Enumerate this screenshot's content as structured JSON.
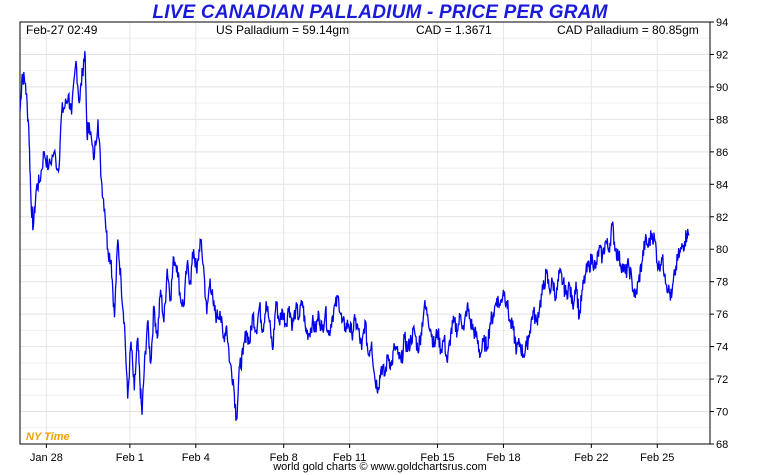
{
  "header": {
    "title": "LIVE CANADIAN PALLADIUM - PRICE PER GRAM",
    "timestamp": "Feb-27  02:49",
    "us_price": "US Palladium = 59.14gm",
    "cad_rate": "CAD = 1.3671",
    "cad_price": "CAD Palladium = 80.85gm"
  },
  "timezone_label": "NY Time",
  "footer": "world gold charts © www.goldchartsrus.com",
  "colors": {
    "title": "#1a1adb",
    "line": "#0000ee",
    "timezone": "#f0a000",
    "grid": "#e6e6e6"
  },
  "chart_data": {
    "type": "line",
    "title": "LIVE CANADIAN PALLADIUM - PRICE PER GRAM",
    "xlabel": "",
    "ylabel": "",
    "ylim": [
      68,
      94
    ],
    "y_ticks": [
      68,
      70,
      72,
      74,
      76,
      78,
      80,
      82,
      84,
      86,
      88,
      90,
      92,
      94
    ],
    "x_ticks": [
      {
        "label": "Jan 28",
        "x": 1.2
      },
      {
        "label": "Feb 1",
        "x": 5.0
      },
      {
        "label": "Feb 4",
        "x": 8.0
      },
      {
        "label": "Feb 8",
        "x": 12.0
      },
      {
        "label": "Feb 11",
        "x": 15.0
      },
      {
        "label": "Feb 15",
        "x": 19.0
      },
      {
        "label": "Feb 18",
        "x": 22.0
      },
      {
        "label": "Feb 22",
        "x": 26.0
      },
      {
        "label": "Feb 25",
        "x": 29.0
      }
    ],
    "xlim": [
      0,
      31.4
    ],
    "grid": true,
    "series": [
      {
        "name": "",
        "points": [
          [
            0.0,
            88.5
          ],
          [
            0.1,
            90.8
          ],
          [
            0.25,
            90.2
          ],
          [
            0.4,
            87.5
          ],
          [
            0.5,
            83.0
          ],
          [
            0.6,
            81.3
          ],
          [
            0.75,
            83.8
          ],
          [
            0.9,
            84.2
          ],
          [
            1.1,
            86.0
          ],
          [
            1.3,
            85.0
          ],
          [
            1.55,
            86.0
          ],
          [
            1.75,
            84.8
          ],
          [
            1.9,
            88.5
          ],
          [
            2.05,
            88.8
          ],
          [
            2.2,
            89.5
          ],
          [
            2.35,
            88.3
          ],
          [
            2.55,
            91.6
          ],
          [
            2.7,
            89.0
          ],
          [
            2.85,
            91.0
          ],
          [
            2.95,
            92.2
          ],
          [
            3.05,
            87.0
          ],
          [
            3.15,
            87.8
          ],
          [
            3.35,
            85.5
          ],
          [
            3.55,
            88.0
          ],
          [
            3.7,
            84.3
          ],
          [
            3.85,
            82.5
          ],
          [
            4.0,
            80.0
          ],
          [
            4.15,
            79.3
          ],
          [
            4.3,
            75.8
          ],
          [
            4.45,
            80.6
          ],
          [
            4.6,
            78.0
          ],
          [
            4.75,
            75.5
          ],
          [
            4.9,
            70.8
          ],
          [
            5.05,
            74.3
          ],
          [
            5.2,
            71.3
          ],
          [
            5.35,
            74.5
          ],
          [
            5.45,
            72.0
          ],
          [
            5.55,
            69.8
          ],
          [
            5.65,
            72.5
          ],
          [
            5.8,
            75.5
          ],
          [
            5.95,
            73.0
          ],
          [
            6.1,
            76.5
          ],
          [
            6.25,
            74.5
          ],
          [
            6.4,
            77.5
          ],
          [
            6.55,
            75.5
          ],
          [
            6.7,
            78.8
          ],
          [
            6.85,
            77.0
          ],
          [
            7.0,
            79.5
          ],
          [
            7.15,
            79.0
          ],
          [
            7.3,
            77.0
          ],
          [
            7.45,
            76.5
          ],
          [
            7.6,
            79.0
          ],
          [
            7.75,
            78.0
          ],
          [
            7.9,
            80.0
          ],
          [
            8.05,
            78.5
          ],
          [
            8.2,
            80.6
          ],
          [
            8.35,
            79.0
          ],
          [
            8.5,
            76.0
          ],
          [
            8.65,
            78.2
          ],
          [
            8.8,
            76.5
          ],
          [
            8.95,
            75.8
          ],
          [
            9.1,
            76.2
          ],
          [
            9.25,
            74.5
          ],
          [
            9.4,
            75.3
          ],
          [
            9.55,
            73.0
          ],
          [
            9.7,
            72.0
          ],
          [
            9.85,
            69.5
          ],
          [
            10.0,
            72.8
          ],
          [
            10.15,
            73.5
          ],
          [
            10.3,
            75.0
          ],
          [
            10.45,
            74.2
          ],
          [
            10.6,
            76.0
          ],
          [
            10.75,
            75.0
          ],
          [
            10.9,
            76.5
          ],
          [
            11.05,
            75.0
          ],
          [
            11.2,
            76.8
          ],
          [
            11.35,
            75.5
          ],
          [
            11.5,
            73.8
          ],
          [
            11.65,
            76.8
          ],
          [
            11.8,
            75.5
          ],
          [
            11.95,
            76.2
          ],
          [
            12.1,
            75.4
          ],
          [
            12.25,
            76.5
          ],
          [
            12.4,
            75.3
          ],
          [
            12.55,
            76.3
          ],
          [
            12.7,
            75.8
          ],
          [
            12.85,
            76.8
          ],
          [
            13.0,
            75.0
          ],
          [
            13.15,
            74.8
          ],
          [
            13.3,
            75.5
          ],
          [
            13.45,
            75.0
          ],
          [
            13.6,
            76.0
          ],
          [
            13.75,
            75.0
          ],
          [
            13.9,
            76.2
          ],
          [
            14.05,
            74.7
          ],
          [
            14.2,
            75.8
          ],
          [
            14.35,
            76.5
          ],
          [
            14.5,
            77.0
          ],
          [
            14.65,
            75.5
          ],
          [
            14.8,
            75.2
          ],
          [
            14.95,
            75.4
          ],
          [
            15.1,
            74.8
          ],
          [
            15.25,
            75.6
          ],
          [
            15.4,
            75.0
          ],
          [
            15.55,
            73.8
          ],
          [
            15.7,
            75.6
          ],
          [
            15.85,
            73.5
          ],
          [
            16.0,
            74.3
          ],
          [
            16.15,
            72.0
          ],
          [
            16.3,
            71.5
          ],
          [
            16.45,
            72.8
          ],
          [
            16.6,
            72.2
          ],
          [
            16.75,
            73.5
          ],
          [
            16.9,
            72.8
          ],
          [
            17.05,
            74.0
          ],
          [
            17.2,
            73.5
          ],
          [
            17.35,
            73.0
          ],
          [
            17.5,
            74.5
          ],
          [
            17.65,
            73.8
          ],
          [
            17.8,
            74.5
          ],
          [
            17.95,
            75.0
          ],
          [
            18.1,
            73.8
          ],
          [
            18.25,
            74.8
          ],
          [
            18.4,
            76.5
          ],
          [
            18.55,
            76.0
          ],
          [
            18.7,
            75.0
          ],
          [
            18.85,
            74.0
          ],
          [
            19.0,
            75.0
          ],
          [
            19.15,
            73.8
          ],
          [
            19.3,
            74.5
          ],
          [
            19.45,
            73.0
          ],
          [
            19.6,
            74.8
          ],
          [
            19.75,
            75.5
          ],
          [
            19.9,
            75.0
          ],
          [
            20.05,
            76.0
          ],
          [
            20.2,
            75.0
          ],
          [
            20.35,
            76.5
          ],
          [
            20.5,
            75.5
          ],
          [
            20.65,
            75.0
          ],
          [
            20.8,
            74.5
          ],
          [
            20.95,
            73.5
          ],
          [
            21.1,
            74.3
          ],
          [
            21.25,
            74.0
          ],
          [
            21.4,
            75.5
          ],
          [
            21.55,
            76.0
          ],
          [
            21.7,
            77.0
          ],
          [
            21.85,
            76.5
          ],
          [
            22.0,
            77.5
          ],
          [
            22.15,
            76.8
          ],
          [
            22.3,
            75.5
          ],
          [
            22.45,
            75.0
          ],
          [
            22.6,
            73.8
          ],
          [
            22.75,
            74.2
          ],
          [
            22.9,
            73.5
          ],
          [
            23.05,
            74.0
          ],
          [
            23.2,
            75.0
          ],
          [
            23.35,
            76.2
          ],
          [
            23.5,
            75.5
          ],
          [
            23.65,
            76.5
          ],
          [
            23.8,
            77.5
          ],
          [
            23.95,
            78.5
          ],
          [
            24.1,
            77.5
          ],
          [
            24.25,
            78.0
          ],
          [
            24.4,
            77.0
          ],
          [
            24.55,
            78.5
          ],
          [
            24.7,
            78.0
          ],
          [
            24.85,
            77.2
          ],
          [
            25.0,
            77.8
          ],
          [
            25.15,
            76.5
          ],
          [
            25.3,
            78.0
          ],
          [
            25.45,
            75.8
          ],
          [
            25.6,
            77.5
          ],
          [
            25.75,
            78.5
          ],
          [
            25.9,
            79.0
          ],
          [
            26.05,
            79.5
          ],
          [
            26.2,
            78.8
          ],
          [
            26.35,
            80.0
          ],
          [
            26.5,
            79.5
          ],
          [
            26.65,
            80.5
          ],
          [
            26.8,
            80.0
          ],
          [
            26.95,
            81.5
          ],
          [
            27.1,
            80.0
          ],
          [
            27.25,
            79.5
          ],
          [
            27.4,
            79.0
          ],
          [
            27.55,
            78.5
          ],
          [
            27.7,
            79.0
          ],
          [
            27.85,
            78.0
          ],
          [
            28.0,
            77.0
          ],
          [
            28.15,
            78.0
          ],
          [
            28.3,
            79.2
          ],
          [
            28.45,
            80.5
          ],
          [
            28.6,
            80.2
          ],
          [
            28.75,
            81.0
          ],
          [
            28.9,
            80.5
          ],
          [
            29.05,
            78.8
          ],
          [
            29.2,
            79.5
          ],
          [
            29.35,
            78.5
          ],
          [
            29.5,
            77.5
          ],
          [
            29.65,
            77.0
          ],
          [
            29.8,
            78.5
          ],
          [
            29.95,
            79.5
          ],
          [
            30.1,
            80.0
          ],
          [
            30.25,
            80.5
          ],
          [
            30.35,
            81.0
          ],
          [
            30.45,
            80.85
          ]
        ]
      }
    ]
  }
}
